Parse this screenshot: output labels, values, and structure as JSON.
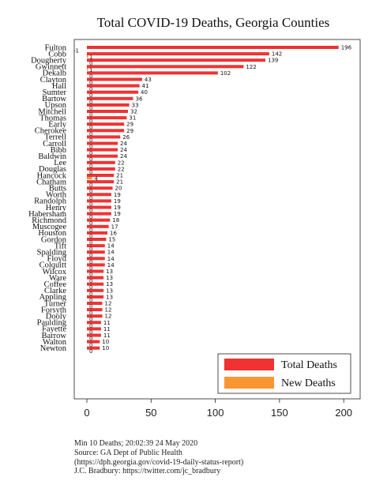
{
  "chart_data": {
    "type": "bar",
    "orientation": "horizontal",
    "title": "Total COVID-19 Deaths, Georgia Counties",
    "xlabel": "",
    "ylabel": "",
    "xlim": [
      -5,
      205
    ],
    "xticks": [
      0,
      50,
      100,
      150,
      200
    ],
    "grid": false,
    "legend_position": "bottom-right",
    "categories": [
      "Fulton",
      "Cobb",
      "Dougherty",
      "Gwinnett",
      "Dekalb",
      "Clayton",
      "Hall",
      "Sumter",
      "Bartow",
      "Upson",
      "Mitchell",
      "Thomas",
      "Early",
      "Cherokee",
      "Terrell",
      "Carroll",
      "Bibb",
      "Baldwin",
      "Lee",
      "Douglas",
      "Hancock",
      "Chatham",
      "Butts",
      "Worth",
      "Randolph",
      "Henry",
      "Habersham",
      "Richmond",
      "Muscogee",
      "Houston",
      "Gordon",
      "Tift",
      "Spalding",
      "Floyd",
      "Colquitt",
      "Wilcox",
      "Ware",
      "Coffee",
      "Clarke",
      "Appling",
      "Turner",
      "Forsyth",
      "Dooly",
      "Paulding",
      "Fayette",
      "Barrow",
      "Walton",
      "Newton"
    ],
    "series": [
      {
        "name": "Total Deaths",
        "color": "#f03232",
        "values": [
          196,
          142,
          139,
          122,
          102,
          43,
          41,
          40,
          36,
          33,
          32,
          31,
          29,
          29,
          26,
          24,
          24,
          24,
          22,
          22,
          21,
          21,
          20,
          19,
          19,
          19,
          19,
          18,
          17,
          16,
          15,
          14,
          14,
          14,
          14,
          13,
          13,
          13,
          13,
          13,
          12,
          12,
          12,
          11,
          11,
          11,
          10,
          10
        ]
      },
      {
        "name": "New Deaths",
        "color": "#fa9632",
        "values": [
          -1,
          1,
          0,
          1,
          0,
          0,
          0,
          0,
          0,
          0,
          0,
          0,
          0,
          0,
          0,
          0,
          0,
          0,
          0,
          0,
          4,
          0,
          0,
          0,
          0,
          0,
          0,
          0,
          0,
          0,
          0,
          0,
          0,
          0,
          0,
          0,
          0,
          0,
          0,
          0,
          0,
          0,
          0,
          0,
          0,
          0,
          0,
          0
        ]
      }
    ]
  },
  "notes": {
    "line1": "Min 10 Deaths; 20:02:39  24 May 2020",
    "line2": "Source: GA Dept of Public Health",
    "line3": "(https://dph.georgia.gov/covid-19-daily-status-report)",
    "line4": "J.C. Bradbury: https://twitter.com/jc_bradbury"
  }
}
